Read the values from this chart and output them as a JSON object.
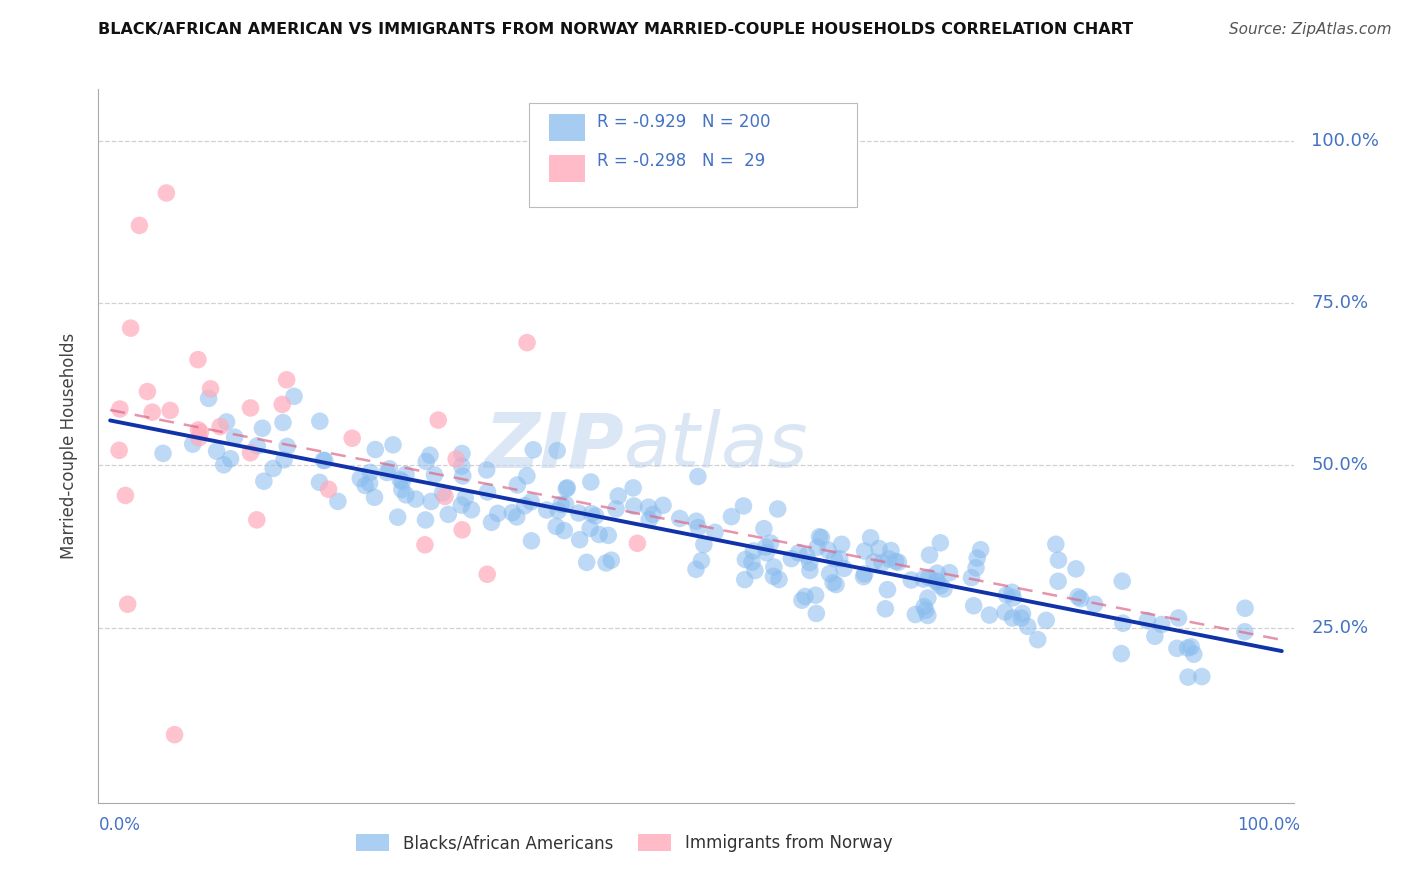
{
  "title": "BLACK/AFRICAN AMERICAN VS IMMIGRANTS FROM NORWAY MARRIED-COUPLE HOUSEHOLDS CORRELATION CHART",
  "source": "Source: ZipAtlas.com",
  "ylabel": "Married-couple Households",
  "watermark_zip": "ZIP",
  "watermark_atlas": "atlas",
  "legend_line1": "R = -0.929   N = 200",
  "legend_line2": "R = -0.298   N =  29",
  "legend_label_blue": "Blacks/African Americans",
  "legend_label_pink": "Immigrants from Norway",
  "ytick_labels": [
    "100.0%",
    "75.0%",
    "50.0%",
    "25.0%"
  ],
  "ytick_values": [
    1.0,
    0.75,
    0.5,
    0.25
  ],
  "blue_color": "#88bbee",
  "pink_color": "#ffaabb",
  "trendline_blue": "#1133aa",
  "trendline_pink": "#dd6688",
  "title_color": "#111111",
  "axis_label_color": "#4472c4",
  "background_color": "#ffffff",
  "grid_color": "#cccccc"
}
